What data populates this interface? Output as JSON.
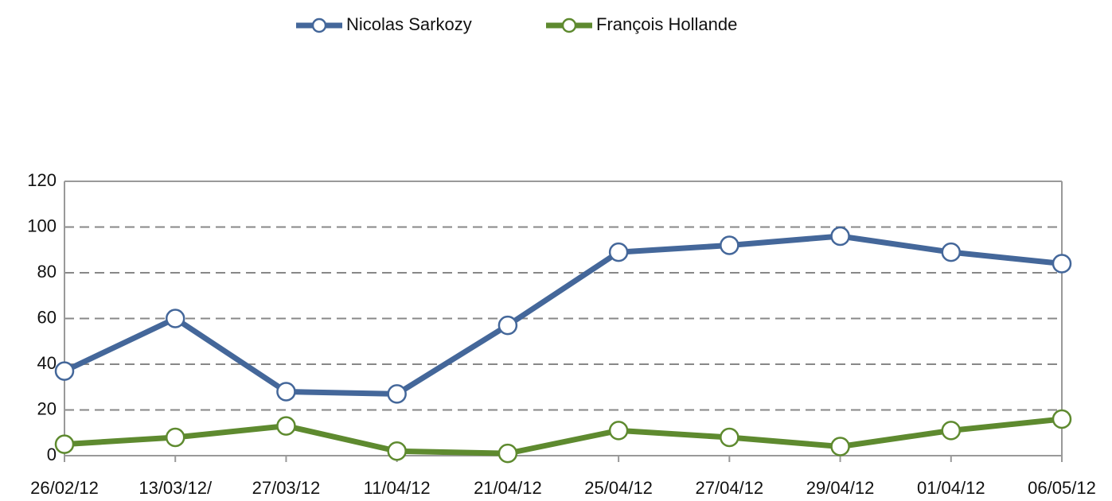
{
  "chart_data": {
    "type": "line",
    "categories": [
      "26/02/12",
      "13/03/12/",
      "27/03/12",
      "11/04/12",
      "21/04/12",
      "25/04/12",
      "27/04/12",
      "29/04/12",
      "01/04/12",
      "06/05/12"
    ],
    "series": [
      {
        "name": "Nicolas Sarkozy",
        "color": "#44679a",
        "values": [
          37,
          60,
          28,
          27,
          57,
          89,
          92,
          96,
          89,
          84
        ]
      },
      {
        "name": "François Hollande",
        "color": "#5e8a2f",
        "values": [
          5,
          8,
          13,
          2,
          1,
          11,
          8,
          4,
          11,
          16
        ]
      }
    ],
    "ylim": [
      0,
      120
    ],
    "yticks": [
      0,
      20,
      40,
      60,
      80,
      100,
      120
    ],
    "grid": true,
    "legend": "top"
  }
}
